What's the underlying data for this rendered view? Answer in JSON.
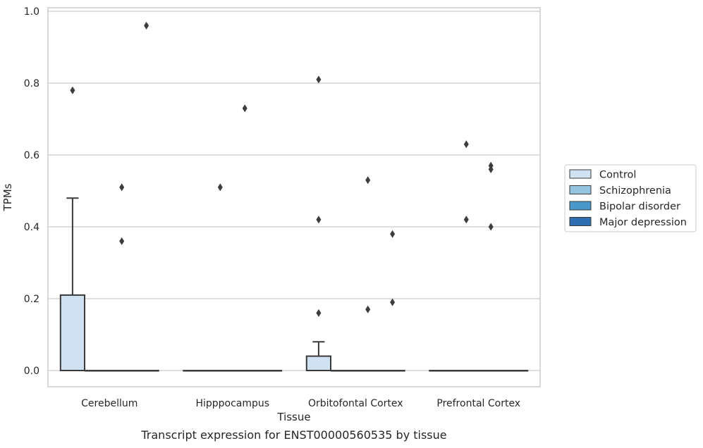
{
  "caption": "Transcript expression for ENST00000560535 by tissue",
  "chart_data": {
    "type": "box",
    "xlabel": "Tissue",
    "ylabel": "TPMs",
    "ylim": [
      -0.045,
      1.01
    ],
    "yticks": [
      0.0,
      0.2,
      0.4,
      0.6,
      0.8,
      1.0
    ],
    "ytick_labels": [
      "0.0",
      "0.2",
      "0.4",
      "0.6",
      "0.8",
      "1.0"
    ],
    "grid": "horizontal",
    "legend_position": "right",
    "categories": [
      "Cerebellum",
      "Hipppocampus",
      "Orbitofontal Cortex",
      "Prefrontal Cortex"
    ],
    "series": [
      {
        "name": "Control",
        "color": "#d0e1f2",
        "boxes": [
          {
            "q1": 0.0,
            "median": 0.0,
            "q3": 0.21,
            "whisker_low": 0.0,
            "whisker_high": 0.48,
            "outliers": [
              0.78
            ]
          },
          {
            "q1": 0.0,
            "median": 0.0,
            "q3": 0.0,
            "whisker_low": 0.0,
            "whisker_high": 0.0,
            "outliers": []
          },
          {
            "q1": 0.0,
            "median": 0.0,
            "q3": 0.04,
            "whisker_low": 0.0,
            "whisker_high": 0.08,
            "outliers": [
              0.16,
              0.42,
              0.81
            ]
          },
          {
            "q1": 0.0,
            "median": 0.0,
            "q3": 0.0,
            "whisker_low": 0.0,
            "whisker_high": 0.0,
            "outliers": []
          }
        ]
      },
      {
        "name": "Schizophrenia",
        "color": "#94c4df",
        "boxes": [
          {
            "q1": 0.0,
            "median": 0.0,
            "q3": 0.0,
            "whisker_low": 0.0,
            "whisker_high": 0.0,
            "outliers": []
          },
          {
            "q1": 0.0,
            "median": 0.0,
            "q3": 0.0,
            "whisker_low": 0.0,
            "whisker_high": 0.0,
            "outliers": [
              0.51
            ]
          },
          {
            "q1": 0.0,
            "median": 0.0,
            "q3": 0.0,
            "whisker_low": 0.0,
            "whisker_high": 0.0,
            "outliers": []
          },
          {
            "q1": 0.0,
            "median": 0.0,
            "q3": 0.0,
            "whisker_low": 0.0,
            "whisker_high": 0.0,
            "outliers": [
              0.42,
              0.63
            ]
          }
        ]
      },
      {
        "name": "Bipolar disorder",
        "color": "#4a98c9",
        "boxes": [
          {
            "q1": 0.0,
            "median": 0.0,
            "q3": 0.0,
            "whisker_low": 0.0,
            "whisker_high": 0.0,
            "outliers": [
              0.36,
              0.51
            ]
          },
          {
            "q1": 0.0,
            "median": 0.0,
            "q3": 0.0,
            "whisker_low": 0.0,
            "whisker_high": 0.0,
            "outliers": [
              0.73
            ]
          },
          {
            "q1": 0.0,
            "median": 0.0,
            "q3": 0.0,
            "whisker_low": 0.0,
            "whisker_high": 0.0,
            "outliers": [
              0.17,
              0.53
            ]
          },
          {
            "q1": 0.0,
            "median": 0.0,
            "q3": 0.0,
            "whisker_low": 0.0,
            "whisker_high": 0.0,
            "outliers": [
              0.4,
              0.56,
              0.57
            ]
          }
        ]
      },
      {
        "name": "Major depression",
        "color": "#2e6eb0",
        "boxes": [
          {
            "q1": 0.0,
            "median": 0.0,
            "q3": 0.0,
            "whisker_low": 0.0,
            "whisker_high": 0.0,
            "outliers": [
              0.96
            ]
          },
          {
            "q1": 0.0,
            "median": 0.0,
            "q3": 0.0,
            "whisker_low": 0.0,
            "whisker_high": 0.0,
            "outliers": []
          },
          {
            "q1": 0.0,
            "median": 0.0,
            "q3": 0.0,
            "whisker_low": 0.0,
            "whisker_high": 0.0,
            "outliers": [
              0.19,
              0.38
            ]
          },
          {
            "q1": 0.0,
            "median": 0.0,
            "q3": 0.0,
            "whisker_low": 0.0,
            "whisker_high": 0.0,
            "outliers": []
          }
        ]
      }
    ]
  }
}
